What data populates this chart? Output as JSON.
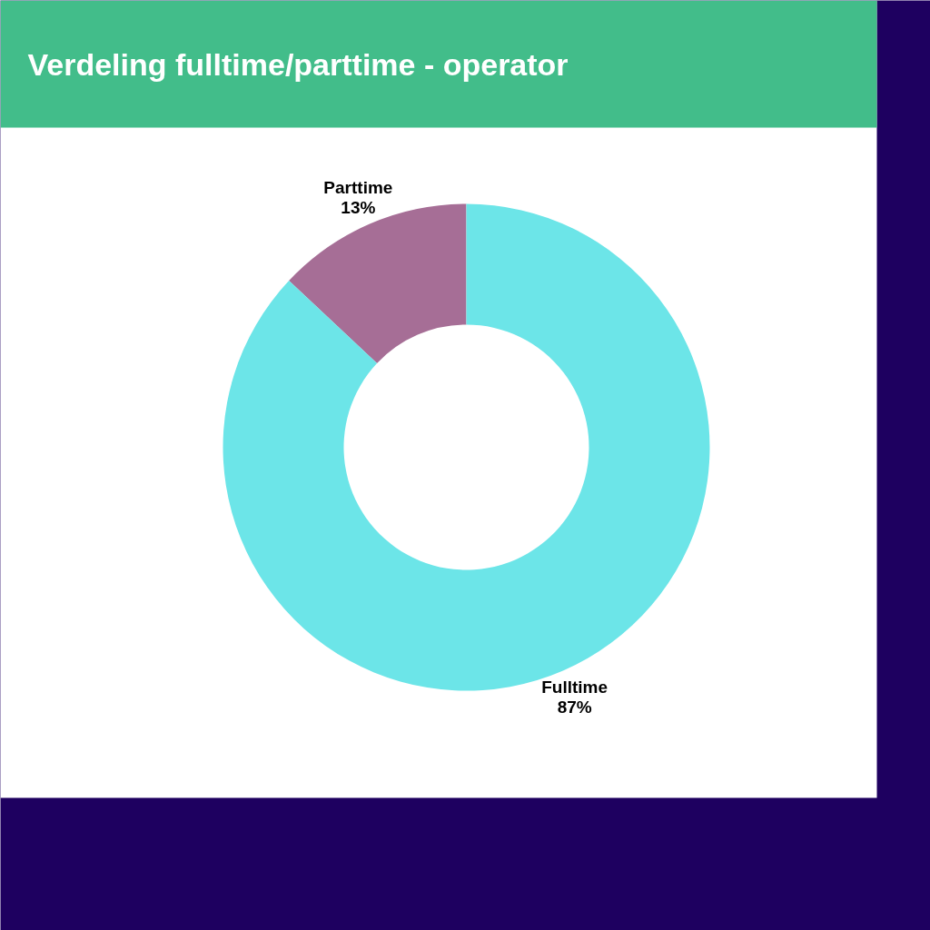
{
  "chart_data": {
    "type": "donut",
    "title": "Verdeling fulltime/parttime - operator",
    "categories": [
      "Parttime",
      "Fulltime"
    ],
    "values": [
      13,
      87
    ],
    "colors": [
      "#a66e96",
      "#6ce5e8"
    ],
    "value_labels": [
      "13%",
      "87%"
    ]
  }
}
